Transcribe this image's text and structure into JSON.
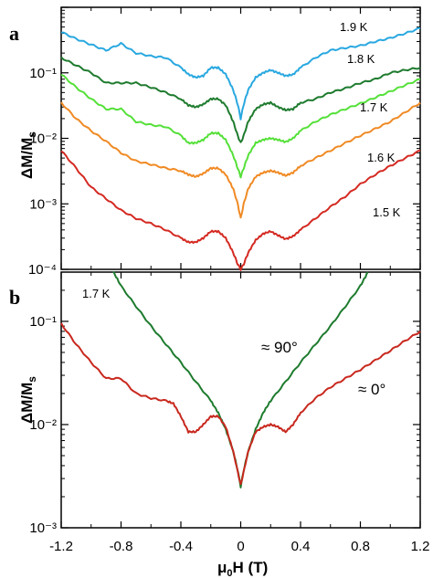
{
  "chart_data": [
    {
      "type": "line",
      "panel": "a",
      "y_scale": "log",
      "xlim": [
        -1.2,
        1.2
      ],
      "ylim": [
        0.0001,
        1
      ],
      "x_ticks": [
        -1.2,
        -0.8,
        -0.4,
        0,
        0.4,
        0.8,
        1.2
      ],
      "y_tick_labels": [
        "10⁻¹",
        "10⁻²",
        "10⁻³",
        "10⁻⁴"
      ],
      "ylabel": "ΔM/Ms",
      "xlabel": "",
      "grid": false,
      "series": [
        {
          "name": "1.9 K",
          "color": "#29a8e0",
          "x": [
            -1.2,
            -1.1,
            -1.0,
            -0.9,
            -0.8,
            -0.7,
            -0.6,
            -0.5,
            -0.4,
            -0.35,
            -0.3,
            -0.25,
            -0.2,
            -0.15,
            -0.1,
            -0.05,
            -0.02,
            0,
            0.02,
            0.05,
            0.1,
            0.15,
            0.2,
            0.25,
            0.3,
            0.35,
            0.4,
            0.5,
            0.6,
            0.7,
            0.8,
            0.9,
            1.0,
            1.1,
            1.2
          ],
          "y": [
            0.42,
            0.33,
            0.27,
            0.22,
            0.28,
            0.2,
            0.18,
            0.17,
            0.12,
            0.095,
            0.085,
            0.09,
            0.12,
            0.12,
            0.095,
            0.055,
            0.033,
            0.02,
            0.033,
            0.055,
            0.085,
            0.1,
            0.11,
            0.1,
            0.09,
            0.094,
            0.12,
            0.17,
            0.22,
            0.24,
            0.26,
            0.3,
            0.34,
            0.4,
            0.48
          ]
        },
        {
          "name": "1.8 K",
          "color": "#1e7b2e",
          "x": [
            -1.2,
            -1.1,
            -1.0,
            -0.9,
            -0.8,
            -0.7,
            -0.6,
            -0.5,
            -0.4,
            -0.35,
            -0.3,
            -0.25,
            -0.2,
            -0.15,
            -0.1,
            -0.05,
            -0.02,
            0,
            0.02,
            0.05,
            0.1,
            0.15,
            0.2,
            0.25,
            0.3,
            0.35,
            0.4,
            0.5,
            0.6,
            0.7,
            0.8,
            0.9,
            1.0,
            1.1,
            1.2
          ],
          "y": [
            0.17,
            0.13,
            0.1,
            0.07,
            0.07,
            0.07,
            0.06,
            0.05,
            0.04,
            0.032,
            0.03,
            0.033,
            0.04,
            0.04,
            0.032,
            0.018,
            0.011,
            0.0085,
            0.011,
            0.018,
            0.028,
            0.033,
            0.035,
            0.03,
            0.027,
            0.028,
            0.035,
            0.04,
            0.05,
            0.058,
            0.07,
            0.08,
            0.1,
            0.11,
            0.12
          ]
        },
        {
          "name": "1.7 K",
          "color": "#55e039",
          "x": [
            -1.2,
            -1.1,
            -1.0,
            -0.9,
            -0.8,
            -0.7,
            -0.6,
            -0.5,
            -0.4,
            -0.35,
            -0.3,
            -0.25,
            -0.2,
            -0.15,
            -0.1,
            -0.05,
            -0.02,
            0,
            0.02,
            0.05,
            0.1,
            0.15,
            0.2,
            0.25,
            0.3,
            0.35,
            0.4,
            0.5,
            0.6,
            0.7,
            0.8,
            0.9,
            1.0,
            1.1,
            1.2
          ],
          "y": [
            0.095,
            0.06,
            0.04,
            0.028,
            0.028,
            0.018,
            0.016,
            0.015,
            0.011,
            0.0085,
            0.0085,
            0.0095,
            0.012,
            0.012,
            0.0095,
            0.0055,
            0.0035,
            0.0026,
            0.0035,
            0.0055,
            0.0085,
            0.0095,
            0.01,
            0.0095,
            0.0088,
            0.01,
            0.013,
            0.018,
            0.023,
            0.028,
            0.034,
            0.042,
            0.052,
            0.065,
            0.08
          ]
        },
        {
          "name": "1.6 K",
          "color": "#f08a24",
          "x": [
            -1.2,
            -1.1,
            -1.0,
            -0.9,
            -0.8,
            -0.7,
            -0.6,
            -0.5,
            -0.4,
            -0.35,
            -0.3,
            -0.25,
            -0.2,
            -0.15,
            -0.1,
            -0.05,
            -0.02,
            0,
            0.02,
            0.05,
            0.1,
            0.15,
            0.2,
            0.25,
            0.3,
            0.35,
            0.4,
            0.5,
            0.6,
            0.7,
            0.8,
            0.9,
            1.0,
            1.1,
            1.2
          ],
          "y": [
            0.035,
            0.02,
            0.013,
            0.009,
            0.006,
            0.0045,
            0.004,
            0.0035,
            0.0032,
            0.0028,
            0.0026,
            0.0029,
            0.0035,
            0.0035,
            0.0028,
            0.0017,
            0.001,
            0.0006,
            0.001,
            0.0017,
            0.0026,
            0.003,
            0.0032,
            0.003,
            0.0027,
            0.003,
            0.0038,
            0.005,
            0.0065,
            0.0085,
            0.011,
            0.014,
            0.018,
            0.025,
            0.035
          ]
        },
        {
          "name": "1.5 K",
          "color": "#d42a22",
          "x": [
            -1.2,
            -1.1,
            -1.0,
            -0.9,
            -0.8,
            -0.7,
            -0.6,
            -0.5,
            -0.4,
            -0.35,
            -0.3,
            -0.25,
            -0.2,
            -0.15,
            -0.1,
            -0.05,
            -0.02,
            0,
            0.02,
            0.05,
            0.1,
            0.15,
            0.2,
            0.25,
            0.3,
            0.35,
            0.4,
            0.5,
            0.6,
            0.7,
            0.8,
            0.9,
            1.0,
            1.1,
            1.2
          ],
          "y": [
            0.0065,
            0.0035,
            0.0018,
            0.0012,
            0.0008,
            0.0006,
            0.0005,
            0.0004,
            0.0003,
            0.00026,
            0.00026,
            0.0003,
            0.00038,
            0.00038,
            0.0003,
            0.00018,
            0.00012,
            0.0001,
            0.00012,
            0.00018,
            0.00028,
            0.00035,
            0.00038,
            0.00033,
            0.00029,
            0.00032,
            0.0004,
            0.0006,
            0.0009,
            0.0013,
            0.002,
            0.0028,
            0.0038,
            0.005,
            0.0065
          ]
        }
      ]
    },
    {
      "type": "line",
      "panel": "b",
      "y_scale": "log",
      "xlim": [
        -1.2,
        1.2
      ],
      "ylim": [
        0.001,
        0.3
      ],
      "x_ticks": [
        -1.2,
        -0.8,
        -0.4,
        0,
        0.4,
        0.8,
        1.2
      ],
      "x_tick_labels": [
        "-1.2",
        "-0.8",
        "-0.4",
        "0",
        "0.4",
        "0.8",
        "1.2"
      ],
      "y_tick_labels": [
        "10⁻¹",
        "10⁻²",
        "10⁻³"
      ],
      "ylabel": "ΔM/Ms",
      "xlabel": "μ0H (T)",
      "temperature_label": "1.7 K",
      "grid": false,
      "series": [
        {
          "name": "≈ 90°",
          "color": "#1e7b2e",
          "x": [
            -0.85,
            -0.8,
            -0.7,
            -0.6,
            -0.5,
            -0.4,
            -0.3,
            -0.2,
            -0.15,
            -0.1,
            -0.05,
            -0.02,
            0,
            0.02,
            0.05,
            0.1,
            0.15,
            0.2,
            0.3,
            0.4,
            0.5,
            0.6,
            0.7,
            0.8,
            0.85
          ],
          "y": [
            0.3,
            0.22,
            0.14,
            0.09,
            0.06,
            0.04,
            0.026,
            0.017,
            0.013,
            0.009,
            0.0055,
            0.0036,
            0.0025,
            0.0036,
            0.0055,
            0.009,
            0.013,
            0.017,
            0.026,
            0.04,
            0.06,
            0.09,
            0.14,
            0.22,
            0.3
          ]
        },
        {
          "name": "≈ 0°",
          "color": "#c8281e",
          "x": [
            -1.2,
            -1.1,
            -1.0,
            -0.9,
            -0.8,
            -0.7,
            -0.6,
            -0.5,
            -0.45,
            -0.4,
            -0.35,
            -0.3,
            -0.25,
            -0.2,
            -0.15,
            -0.1,
            -0.05,
            -0.02,
            0,
            0.02,
            0.05,
            0.1,
            0.15,
            0.2,
            0.25,
            0.3,
            0.35,
            0.4,
            0.5,
            0.6,
            0.7,
            0.8,
            0.9,
            1.0,
            1.1,
            1.2
          ],
          "y": [
            0.095,
            0.06,
            0.04,
            0.028,
            0.028,
            0.02,
            0.018,
            0.017,
            0.016,
            0.012,
            0.0085,
            0.0085,
            0.01,
            0.012,
            0.012,
            0.0095,
            0.0055,
            0.0035,
            0.0026,
            0.0035,
            0.0055,
            0.0085,
            0.0095,
            0.01,
            0.0095,
            0.0085,
            0.01,
            0.013,
            0.018,
            0.023,
            0.028,
            0.034,
            0.042,
            0.052,
            0.065,
            0.08
          ]
        }
      ]
    }
  ],
  "labels": {
    "panel_a": "a",
    "panel_b": "b",
    "ylabel_a": "ΔM/Ms",
    "ylabel_b": "ΔM/Ms",
    "xlabel": "μ0H (T)",
    "temp_b": "1.7 K",
    "angle_90": "≈ 90°",
    "angle_0": "≈ 0°"
  }
}
